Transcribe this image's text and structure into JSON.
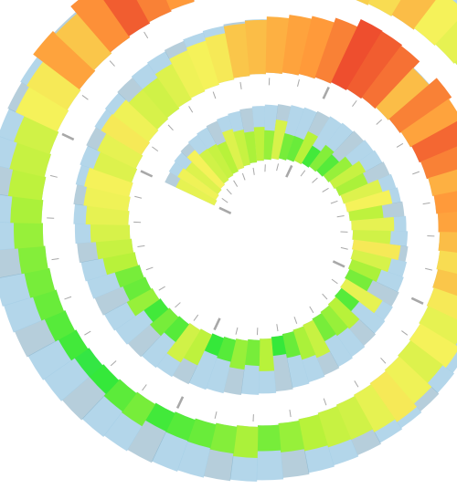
{
  "chart_data": {
    "type": "spiral-heat-bar",
    "title": "",
    "xlabel": "",
    "ylabel": "",
    "tick_labels": [],
    "legend": [],
    "n_turns": 2.1,
    "bins_per_turn": 60,
    "grid": true,
    "colors": {
      "background_band": "#a6cfe6",
      "background_band_dark": "#7aa6bd",
      "tick": "#9a9a9a",
      "low": "#2fd6a0",
      "green": "#35e83a",
      "yellow_green": "#b8f23a",
      "yellow": "#f5f25a",
      "orange": "#ff9a3a",
      "red": "#e8342a"
    },
    "values": [
      0.55,
      0.58,
      0.52,
      0.6,
      0.48,
      0.45,
      0.4,
      0.52,
      0.45,
      0.38,
      0.42,
      0.35,
      0.5,
      0.3,
      0.28,
      0.4,
      0.22,
      0.32,
      0.25,
      0.35,
      0.45,
      0.38,
      0.52,
      0.6,
      0.42,
      0.55,
      0.48,
      0.62,
      0.5,
      0.38,
      0.3,
      0.55,
      0.25,
      0.4,
      0.35,
      0.3,
      0.45,
      0.38,
      0.28,
      0.2,
      0.4,
      0.3,
      0.35,
      0.25,
      0.2,
      0.42,
      0.48,
      0.25,
      0.3,
      0.22,
      0.35,
      0.28,
      0.3,
      0.4,
      0.45,
      0.5,
      0.55,
      0.58,
      0.6,
      0.52,
      0.55,
      0.62,
      0.58,
      0.5,
      0.48,
      0.52,
      0.58,
      0.6,
      0.62,
      0.7,
      0.72,
      0.75,
      0.78,
      0.8,
      0.85,
      0.95,
      0.92,
      0.88,
      0.72,
      0.85,
      0.78,
      0.9,
      0.85,
      0.75,
      0.8,
      0.78,
      0.72,
      0.65,
      0.7,
      0.62,
      0.55,
      0.6,
      0.52,
      0.58,
      0.62,
      0.55,
      0.48,
      0.45,
      0.4,
      0.35,
      0.3,
      0.38,
      0.32,
      0.28,
      0.25,
      0.22,
      0.3,
      0.26,
      0.2,
      0.18,
      0.22,
      0.25,
      0.28,
      0.3,
      0.32,
      0.35,
      0.38,
      0.42,
      0.45,
      0.48,
      0.6,
      0.62,
      0.78,
      0.7,
      0.82,
      0.92,
      0.85,
      0.8,
      0.88,
      0.95,
      0.82,
      0.78,
      0.75,
      0.72,
      0.68,
      0.65,
      0.72,
      0.6,
      0.55,
      0.5,
      0.52,
      0.48,
      0.45
    ]
  }
}
